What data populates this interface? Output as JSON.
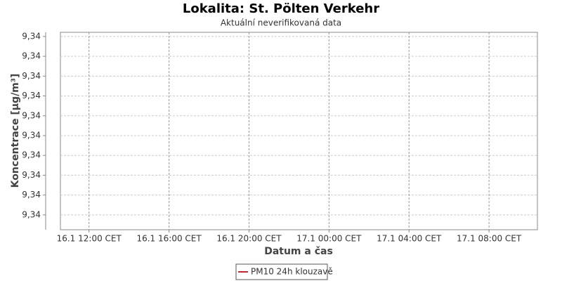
{
  "chart_data": {
    "type": "line",
    "title": "Lokalita: St. Pölten Verkehr",
    "subtitle": "Aktuální neverifikovaná data",
    "xlabel": "Datum a čas",
    "ylabel": "Koncentrace [µg/m³]",
    "x": [],
    "series": [
      {
        "name": "PM10 24h klouzavě",
        "color": "#c0272d",
        "values": []
      }
    ],
    "xlim": [
      10.57,
      34.42
    ],
    "xticks": [
      {
        "value": 12,
        "label": "16.1 12:00 CET"
      },
      {
        "value": 16,
        "label": "16.1 16:00 CET"
      },
      {
        "value": 20,
        "label": "16.1 20:00 CET"
      },
      {
        "value": 24,
        "label": "17.1 00:00 CET"
      },
      {
        "value": 28,
        "label": "17.1 04:00 CET"
      },
      {
        "value": 32,
        "label": "17.1 08:00 CET"
      }
    ],
    "ylim": [
      9.340025,
      9.341021
    ],
    "yticks": [
      {
        "value": 9.3401,
        "label": "9,34"
      },
      {
        "value": 9.3402,
        "label": "9,34"
      },
      {
        "value": 9.3403,
        "label": "9,34"
      },
      {
        "value": 9.3404,
        "label": "9,34"
      },
      {
        "value": 9.3405,
        "label": "9,34"
      },
      {
        "value": 9.3406,
        "label": "9,34"
      },
      {
        "value": 9.3407,
        "label": "9,34"
      },
      {
        "value": 9.3408,
        "label": "9,34"
      },
      {
        "value": 9.3409,
        "label": "9,34"
      },
      {
        "value": 9.341,
        "label": "9,34"
      }
    ],
    "grid": true
  }
}
